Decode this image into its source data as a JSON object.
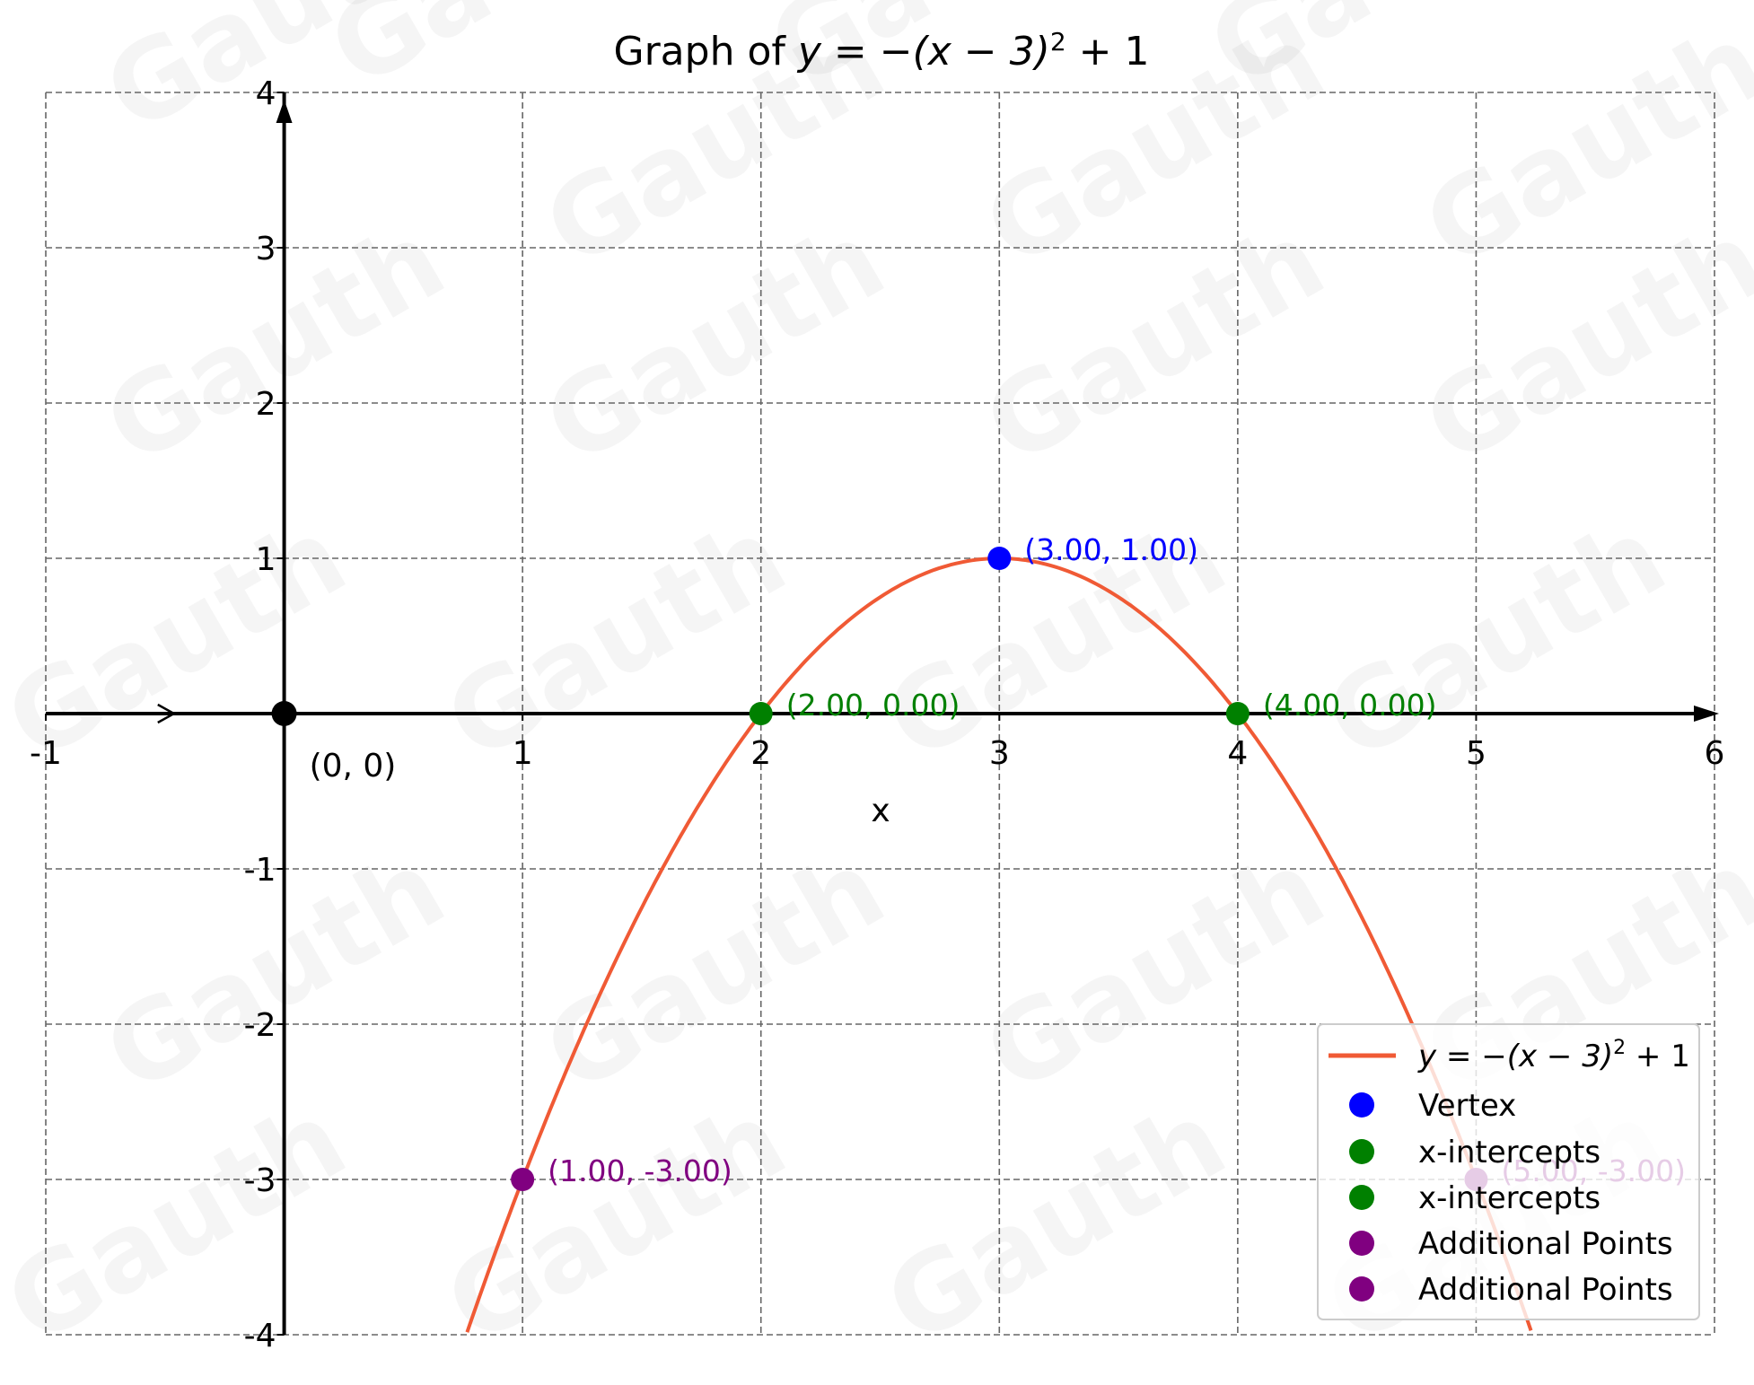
{
  "chart_data": {
    "type": "line",
    "title": "Graph of y = −(x − 3)² + 1",
    "title_parts": {
      "prefix": "Graph of ",
      "equation": "y = −(x − 3)",
      "exp": "2",
      "suffix": " + 1"
    },
    "xlabel": "x",
    "ylabel": "",
    "xlim": [
      -1,
      6
    ],
    "ylim": [
      -4,
      4
    ],
    "x_ticks": [
      "-1",
      "1",
      "2",
      "3",
      "4",
      "5",
      "6"
    ],
    "y_ticks": [
      "4",
      "3",
      "2",
      "1",
      "-1",
      "-2",
      "-3",
      "-4"
    ],
    "grid": true,
    "legend_position": "bottom-right",
    "curve": {
      "name": "y = −(x − 3)² + 1",
      "function": "-(x-3)^2+1",
      "color": "#f05a35"
    },
    "origin": {
      "x": 0,
      "y": 0,
      "label": "(0, 0)",
      "color": "#000000"
    },
    "points": [
      {
        "series": "Vertex",
        "x": 3,
        "y": 1,
        "label": "(3.00, 1.00)",
        "color": "#0000ff"
      },
      {
        "series": "x-intercepts",
        "x": 2,
        "y": 0,
        "label": "(2.00, 0.00)",
        "color": "#008000"
      },
      {
        "series": "x-intercepts",
        "x": 4,
        "y": 0,
        "label": "(4.00, 0.00)",
        "color": "#008000"
      },
      {
        "series": "Additional Points",
        "x": 1,
        "y": -3,
        "label": "(1.00, -3.00)",
        "color": "#800080"
      },
      {
        "series": "Additional Points",
        "x": 5,
        "y": -3,
        "label": "(5.00, -3.00)",
        "color": "#800080"
      }
    ],
    "legend": [
      {
        "label_parts": [
          "y = −(x − 3)",
          "2",
          " + 1"
        ],
        "kind": "line",
        "color": "#f05a35"
      },
      {
        "label": "Vertex",
        "kind": "marker",
        "color": "#0000ff"
      },
      {
        "label": "x-intercepts",
        "kind": "marker",
        "color": "#008000"
      },
      {
        "label": "x-intercepts",
        "kind": "marker",
        "color": "#008000"
      },
      {
        "label": "Additional Points",
        "kind": "marker",
        "color": "#800080"
      },
      {
        "label": "Additional Points",
        "kind": "marker",
        "color": "#800080"
      }
    ]
  },
  "watermark": "Gauth"
}
